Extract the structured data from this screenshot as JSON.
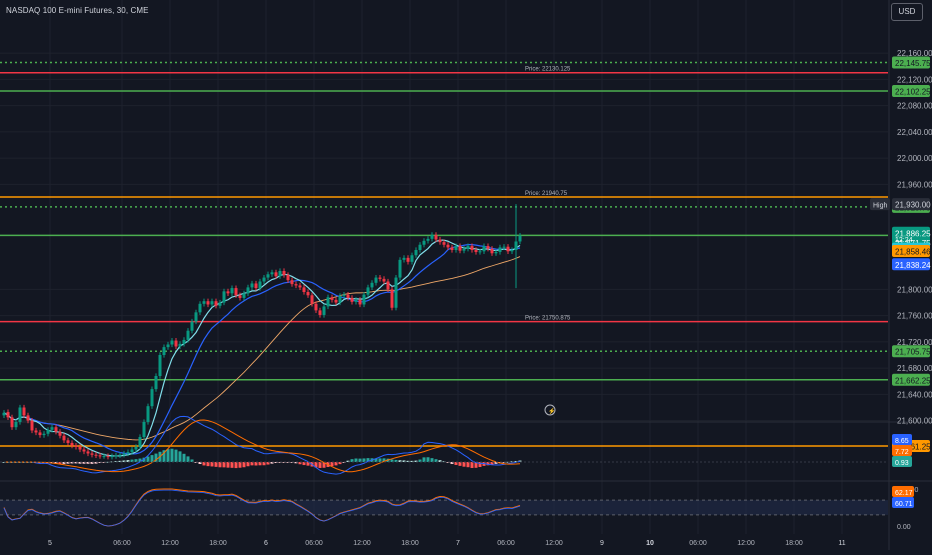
{
  "header": {
    "title": "NASDAQ 100 E-mini Futures, 30, CME",
    "currency": "USD"
  },
  "chart_data": {
    "type": "candlestick",
    "price_axis": {
      "range": [
        21540,
        22180
      ],
      "ticks": [
        {
          "value": 22160,
          "label": "22,160.00"
        },
        {
          "value": 22120,
          "label": "22,120.00"
        },
        {
          "value": 22080,
          "label": "22,080.00"
        },
        {
          "value": 22040,
          "label": "22,040.00"
        },
        {
          "value": 22000,
          "label": "22,000.00"
        },
        {
          "value": 21960,
          "label": "21,960.00"
        },
        {
          "value": 21800,
          "label": "21,800.00"
        },
        {
          "value": 21760,
          "label": "21,760.00"
        },
        {
          "value": 21720,
          "label": "21,720.00"
        },
        {
          "value": 21680,
          "label": "21,680.00"
        },
        {
          "value": 21640,
          "label": "21,640.00"
        },
        {
          "value": 21600,
          "label": "21,600.00"
        }
      ]
    },
    "time_axis": {
      "range": [
        0,
        240
      ],
      "ticks": [
        {
          "bar": 12,
          "label": "5"
        },
        {
          "bar": 30,
          "label": "06:00"
        },
        {
          "bar": 42,
          "label": "12:00"
        },
        {
          "bar": 54,
          "label": "18:00"
        },
        {
          "bar": 66,
          "label": "6"
        },
        {
          "bar": 78,
          "label": "06:00"
        },
        {
          "bar": 90,
          "label": "12:00"
        },
        {
          "bar": 102,
          "label": "18:00"
        },
        {
          "bar": 114,
          "label": "7"
        },
        {
          "bar": 126,
          "label": "06:00"
        },
        {
          "bar": 138,
          "label": "12:00"
        },
        {
          "bar": 150,
          "label": "9"
        },
        {
          "bar": 162,
          "label": "10"
        },
        {
          "bar": 174,
          "label": "06:00"
        },
        {
          "bar": 186,
          "label": "12:00"
        },
        {
          "bar": 198,
          "label": "18:00"
        },
        {
          "bar": 210,
          "label": "11"
        }
      ]
    },
    "closes": [
      21612,
      21605,
      21590,
      21598,
      21620,
      21608,
      21600,
      21585,
      21582,
      21578,
      21580,
      21586,
      21590,
      21583,
      21577,
      21570,
      21566,
      21562,
      21560,
      21556,
      21553,
      21550,
      21548,
      21547,
      21546,
      21546,
      21545,
      21546,
      21547,
      21548,
      21550,
      21552,
      21556,
      21560,
      21575,
      21598,
      21622,
      21648,
      21668,
      21700,
      21712,
      21716,
      21722,
      21713,
      21717,
      21723,
      21737,
      21751,
      21765,
      21778,
      21782,
      21777,
      21782,
      21775,
      21780,
      21797,
      21794,
      21802,
      21791,
      21787,
      21794,
      21803,
      21809,
      21802,
      21812,
      21818,
      21823,
      21826,
      21820,
      21828,
      21822,
      21814,
      21808,
      21806,
      21803,
      21796,
      21791,
      21778,
      21768,
      21761,
      21774,
      21788,
      21784,
      21780,
      21790,
      21792,
      21787,
      21781,
      21784,
      21777,
      21792,
      21803,
      21810,
      21818,
      21816,
      21812,
      21800,
      21772,
      21818,
      21845,
      21848,
      21842,
      21852,
      21860,
      21868,
      21874,
      21877,
      21883,
      21876,
      21872,
      21868,
      21864,
      21860,
      21866,
      21859,
      21862,
      21866,
      21860,
      21857,
      21858,
      21866,
      21862,
      21855,
      21857,
      21864,
      21865,
      21858,
      21860,
      21873,
      21882
    ],
    "opens": [
      21608,
      21613,
      21605,
      21590,
      21598,
      21620,
      21608,
      21600,
      21585,
      21582,
      21578,
      21580,
      21586,
      21590,
      21583,
      21577,
      21570,
      21566,
      21562,
      21560,
      21556,
      21553,
      21550,
      21548,
      21547,
      21546,
      21546,
      21545,
      21546,
      21547,
      21548,
      21550,
      21552,
      21556,
      21560,
      21575,
      21598,
      21622,
      21648,
      21668,
      21700,
      21712,
      21716,
      21722,
      21713,
      21717,
      21723,
      21737,
      21751,
      21765,
      21778,
      21782,
      21777,
      21782,
      21775,
      21780,
      21797,
      21794,
      21802,
      21791,
      21787,
      21794,
      21803,
      21809,
      21802,
      21812,
      21818,
      21823,
      21826,
      21820,
      21828,
      21822,
      21814,
      21808,
      21806,
      21803,
      21796,
      21791,
      21778,
      21768,
      21761,
      21774,
      21788,
      21784,
      21780,
      21790,
      21792,
      21787,
      21781,
      21784,
      21777,
      21792,
      21803,
      21810,
      21818,
      21816,
      21812,
      21800,
      21772,
      21818,
      21845,
      21848,
      21842,
      21852,
      21860,
      21868,
      21874,
      21877,
      21883,
      21876,
      21872,
      21868,
      21864,
      21860,
      21866,
      21859,
      21862,
      21866,
      21860,
      21857,
      21858,
      21866,
      21862,
      21855,
      21857,
      21864,
      21865,
      21858,
      21860,
      21873
    ],
    "first_bar_index": 0,
    "wick_extremes": [
      {
        "bar": 128,
        "high": 21930,
        "low": 21802
      }
    ],
    "horizontal_levels": [
      {
        "price": 22145.75,
        "style": "dotted",
        "color": "#4caf50",
        "tag": "22,145.75",
        "tag_color": "#4caf50",
        "label": ""
      },
      {
        "price": 22130.125,
        "style": "solid",
        "color": "#f23645",
        "tag": "",
        "tag_color": "",
        "label": "Price: 22130.125"
      },
      {
        "price": 22102.25,
        "style": "solid",
        "color": "#4caf50",
        "tag": "22,102.25",
        "tag_color": "#4caf50",
        "label": ""
      },
      {
        "price": 21940.75,
        "style": "solid",
        "color": "#ff9800",
        "tag": "",
        "tag_color": "",
        "label": "Price: 21940.75"
      },
      {
        "price": 21925.75,
        "style": "dotted",
        "color": "#4caf50",
        "tag": "21,925.75",
        "tag_color": "#4caf50",
        "label": ""
      },
      {
        "price": 21882.25,
        "style": "solid",
        "color": "#4caf50",
        "tag": "21,882.25",
        "tag_color": "#4caf50",
        "label": ""
      },
      {
        "price": 21750.875,
        "style": "solid",
        "color": "#f23645",
        "tag": "",
        "tag_color": "",
        "label": "Price: 21750.875"
      },
      {
        "price": 21705.75,
        "style": "dotted",
        "color": "#4caf50",
        "tag": "21,705.75",
        "tag_color": "#4caf50",
        "label": ""
      },
      {
        "price": 21662.25,
        "style": "solid",
        "color": "#4caf50",
        "tag": "21,662.25",
        "tag_color": "#4caf50",
        "label": ""
      },
      {
        "price": 21561.25,
        "style": "solid",
        "color": "#ff9800",
        "tag": "21,561.25",
        "tag_color": "#ff9800",
        "label": ""
      }
    ],
    "price_tags": [
      {
        "price": 21930.0,
        "label": "21,930.00",
        "color": "#2a2e39",
        "text_color": "#d1d4dc",
        "prefix": "High"
      },
      {
        "price": 21886.25,
        "label": "21,886.25",
        "color": "#089981",
        "text_color": "#ffffff",
        "prefix": ""
      },
      {
        "price": 21871.75,
        "label": "21,871.75",
        "color": "#089981",
        "text_color": "#ffffff",
        "prefix": ""
      },
      {
        "price": 21862.17,
        "label": "21,862.17",
        "color": "#26c6da",
        "text_color": "#131722",
        "prefix": ""
      },
      {
        "price": 21858.46,
        "label": "21,858.46",
        "color": "#ff9800",
        "text_color": "#131722",
        "prefix": ""
      },
      {
        "price": 21838.24,
        "label": "21,838.24",
        "color": "#2962ff",
        "text_color": "#ffffff",
        "prefix": ""
      }
    ],
    "countdown": {
      "label": "12:24",
      "price": 21877
    },
    "macd": {
      "tags": [
        {
          "value": 8.65,
          "label": "8.65",
          "color": "#2962ff"
        },
        {
          "value": 7.72,
          "label": "7.72",
          "color": "#ff6d00"
        },
        {
          "value": 0.93,
          "label": "0.93",
          "color": "#26a69a"
        }
      ]
    },
    "rsi": {
      "range": [
        0,
        100
      ],
      "ticks": [
        {
          "value": 100,
          "label": "100.00"
        },
        {
          "value": 0,
          "label": "0.00"
        }
      ],
      "tags": [
        {
          "value": 62.17,
          "label": "62.17",
          "color": "#ff6d00"
        },
        {
          "value": 60.71,
          "label": "60.71",
          "color": "#2962ff"
        }
      ]
    }
  }
}
